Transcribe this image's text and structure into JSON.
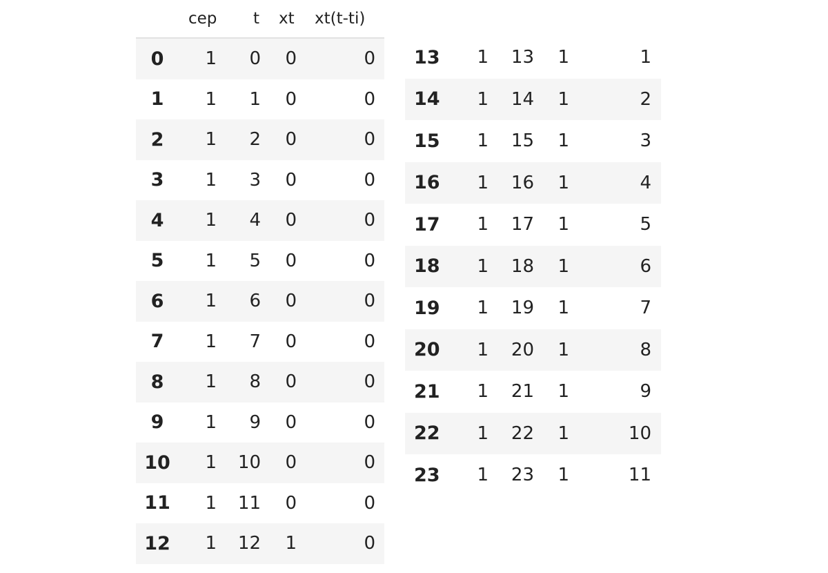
{
  "columns": [
    "cep",
    "t",
    "xt",
    "xt(t-ti)"
  ],
  "left_table": {
    "rows": [
      {
        "index": "0",
        "cep": "1",
        "t": "0",
        "xt": "0",
        "xt_t_ti": "0"
      },
      {
        "index": "1",
        "cep": "1",
        "t": "1",
        "xt": "0",
        "xt_t_ti": "0"
      },
      {
        "index": "2",
        "cep": "1",
        "t": "2",
        "xt": "0",
        "xt_t_ti": "0"
      },
      {
        "index": "3",
        "cep": "1",
        "t": "3",
        "xt": "0",
        "xt_t_ti": "0"
      },
      {
        "index": "4",
        "cep": "1",
        "t": "4",
        "xt": "0",
        "xt_t_ti": "0"
      },
      {
        "index": "5",
        "cep": "1",
        "t": "5",
        "xt": "0",
        "xt_t_ti": "0"
      },
      {
        "index": "6",
        "cep": "1",
        "t": "6",
        "xt": "0",
        "xt_t_ti": "0"
      },
      {
        "index": "7",
        "cep": "1",
        "t": "7",
        "xt": "0",
        "xt_t_ti": "0"
      },
      {
        "index": "8",
        "cep": "1",
        "t": "8",
        "xt": "0",
        "xt_t_ti": "0"
      },
      {
        "index": "9",
        "cep": "1",
        "t": "9",
        "xt": "0",
        "xt_t_ti": "0"
      },
      {
        "index": "10",
        "cep": "1",
        "t": "10",
        "xt": "0",
        "xt_t_ti": "0"
      },
      {
        "index": "11",
        "cep": "1",
        "t": "11",
        "xt": "0",
        "xt_t_ti": "0"
      },
      {
        "index": "12",
        "cep": "1",
        "t": "12",
        "xt": "1",
        "xt_t_ti": "0"
      }
    ]
  },
  "right_table": {
    "rows": [
      {
        "index": "13",
        "cep": "1",
        "t": "13",
        "xt": "1",
        "xt_t_ti": "1"
      },
      {
        "index": "14",
        "cep": "1",
        "t": "14",
        "xt": "1",
        "xt_t_ti": "2"
      },
      {
        "index": "15",
        "cep": "1",
        "t": "15",
        "xt": "1",
        "xt_t_ti": "3"
      },
      {
        "index": "16",
        "cep": "1",
        "t": "16",
        "xt": "1",
        "xt_t_ti": "4"
      },
      {
        "index": "17",
        "cep": "1",
        "t": "17",
        "xt": "1",
        "xt_t_ti": "5"
      },
      {
        "index": "18",
        "cep": "1",
        "t": "18",
        "xt": "1",
        "xt_t_ti": "6"
      },
      {
        "index": "19",
        "cep": "1",
        "t": "19",
        "xt": "1",
        "xt_t_ti": "7"
      },
      {
        "index": "20",
        "cep": "1",
        "t": "20",
        "xt": "1",
        "xt_t_ti": "8"
      },
      {
        "index": "21",
        "cep": "1",
        "t": "21",
        "xt": "1",
        "xt_t_ti": "9"
      },
      {
        "index": "22",
        "cep": "1",
        "t": "22",
        "xt": "1",
        "xt_t_ti": "10"
      },
      {
        "index": "23",
        "cep": "1",
        "t": "23",
        "xt": "1",
        "xt_t_ti": "11"
      }
    ]
  },
  "colors": {
    "stripe": "#f5f5f5",
    "header_rule": "#e2e2e2",
    "text": "#222222"
  }
}
